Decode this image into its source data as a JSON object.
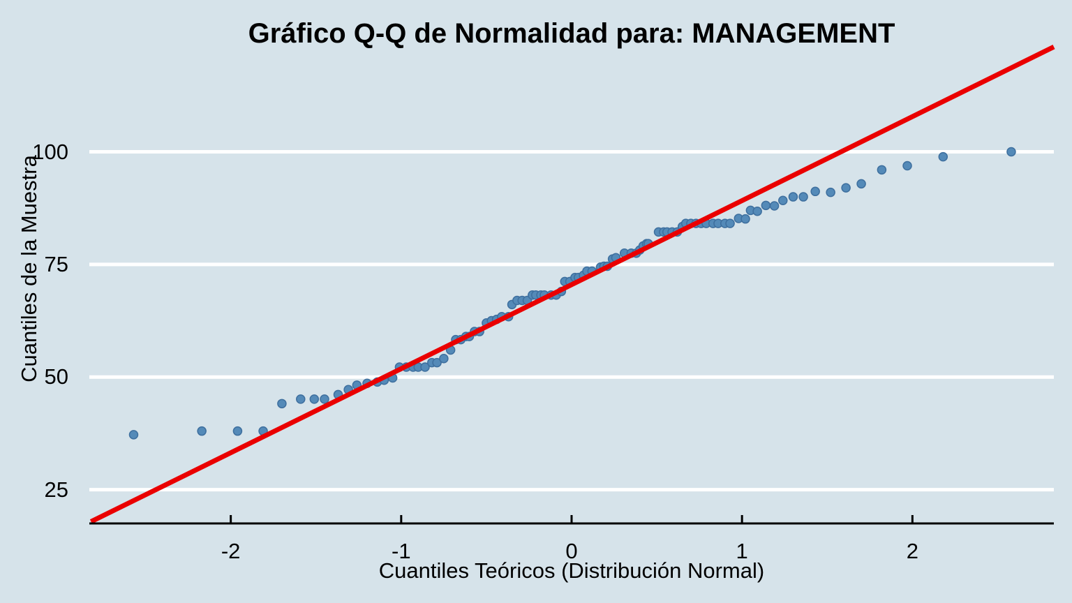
{
  "chart_data": {
    "type": "scatter",
    "title": "Gráfico Q-Q de Normalidad para: MANAGEMENT",
    "xlabel": "Cuantiles Teóricos (Distribución Normal)",
    "ylabel": "Cuantiles de la Muestra",
    "x_ticks": [
      -2,
      -1,
      0,
      1,
      2
    ],
    "y_ticks": [
      25,
      50,
      75,
      100
    ],
    "xlim": [
      -2.83,
      2.83
    ],
    "ylim": [
      17.5,
      133.7
    ],
    "grid": "horizontal-white-lines-at-y-ticks",
    "legend": "none",
    "reference_line": {
      "name": "qq-line",
      "x1": -2.82,
      "y1": 17.9,
      "x2": 2.83,
      "y2": 123.3
    },
    "points": [
      [
        -2.57,
        37.2
      ],
      [
        -2.17,
        38.0
      ],
      [
        -1.96,
        38.0
      ],
      [
        -1.81,
        38.0
      ],
      [
        -1.7,
        44.1
      ],
      [
        -1.59,
        45.1
      ],
      [
        -1.51,
        45.1
      ],
      [
        -1.45,
        45.1
      ],
      [
        -1.37,
        46.1
      ],
      [
        -1.31,
        47.2
      ],
      [
        -1.26,
        48.2
      ],
      [
        -1.2,
        48.6
      ],
      [
        -1.14,
        48.9
      ],
      [
        -1.1,
        49.3
      ],
      [
        -1.05,
        49.8
      ],
      [
        -1.01,
        52.2
      ],
      [
        -0.97,
        52.2
      ],
      [
        -0.93,
        52.2
      ],
      [
        -0.9,
        52.2
      ],
      [
        -0.86,
        52.2
      ],
      [
        -0.82,
        53.2
      ],
      [
        -0.79,
        53.2
      ],
      [
        -0.75,
        54.1
      ],
      [
        -0.71,
        56.0
      ],
      [
        -0.68,
        58.3
      ],
      [
        -0.65,
        58.3
      ],
      [
        -0.62,
        59.0
      ],
      [
        -0.6,
        59.0
      ],
      [
        -0.57,
        60.1
      ],
      [
        -0.54,
        60.1
      ],
      [
        -0.5,
        62.0
      ],
      [
        -0.47,
        62.5
      ],
      [
        -0.44,
        62.8
      ],
      [
        -0.41,
        63.4
      ],
      [
        -0.37,
        63.4
      ],
      [
        -0.35,
        66.1
      ],
      [
        -0.32,
        67.0
      ],
      [
        -0.29,
        67.0
      ],
      [
        -0.26,
        67.0
      ],
      [
        -0.23,
        68.2
      ],
      [
        -0.21,
        68.2
      ],
      [
        -0.18,
        68.2
      ],
      [
        -0.16,
        68.2
      ],
      [
        -0.12,
        68.2
      ],
      [
        -0.09,
        68.2
      ],
      [
        -0.06,
        69.0
      ],
      [
        -0.04,
        71.2
      ],
      [
        -0.01,
        71.2
      ],
      [
        0.02,
        72.1
      ],
      [
        0.04,
        72.1
      ],
      [
        0.07,
        72.6
      ],
      [
        0.09,
        73.5
      ],
      [
        0.12,
        73.5
      ],
      [
        0.17,
        74.4
      ],
      [
        0.19,
        74.6
      ],
      [
        0.21,
        74.6
      ],
      [
        0.24,
        76.2
      ],
      [
        0.26,
        76.5
      ],
      [
        0.31,
        77.5
      ],
      [
        0.35,
        77.5
      ],
      [
        0.38,
        77.5
      ],
      [
        0.4,
        78.2
      ],
      [
        0.42,
        79.1
      ],
      [
        0.44,
        79.6
      ],
      [
        0.45,
        79.6
      ],
      [
        0.51,
        82.2
      ],
      [
        0.54,
        82.2
      ],
      [
        0.56,
        82.2
      ],
      [
        0.59,
        82.2
      ],
      [
        0.62,
        82.2
      ],
      [
        0.65,
        83.4
      ],
      [
        0.67,
        84.1
      ],
      [
        0.7,
        84.1
      ],
      [
        0.73,
        84.1
      ],
      [
        0.76,
        84.1
      ],
      [
        0.79,
        84.1
      ],
      [
        0.83,
        84.1
      ],
      [
        0.86,
        84.1
      ],
      [
        0.9,
        84.1
      ],
      [
        0.93,
        84.1
      ],
      [
        0.98,
        85.2
      ],
      [
        1.02,
        85.1
      ],
      [
        1.05,
        87.0
      ],
      [
        1.09,
        86.8
      ],
      [
        1.14,
        88.1
      ],
      [
        1.19,
        88.0
      ],
      [
        1.24,
        89.2
      ],
      [
        1.3,
        90.0
      ],
      [
        1.36,
        90.0
      ],
      [
        1.43,
        91.2
      ],
      [
        1.52,
        91.0
      ],
      [
        1.61,
        92.0
      ],
      [
        1.7,
        92.9
      ],
      [
        1.82,
        96.0
      ],
      [
        1.97,
        96.9
      ],
      [
        2.18,
        98.9
      ],
      [
        2.58,
        100.0
      ]
    ],
    "colors": {
      "background": "#d6e3ea",
      "grid": "#ffffff",
      "point_fill": "#548ab8",
      "point_stroke": "#3e6f9e",
      "reference_line": "#ea0000",
      "axis": "#000000",
      "text": "#000000"
    }
  }
}
